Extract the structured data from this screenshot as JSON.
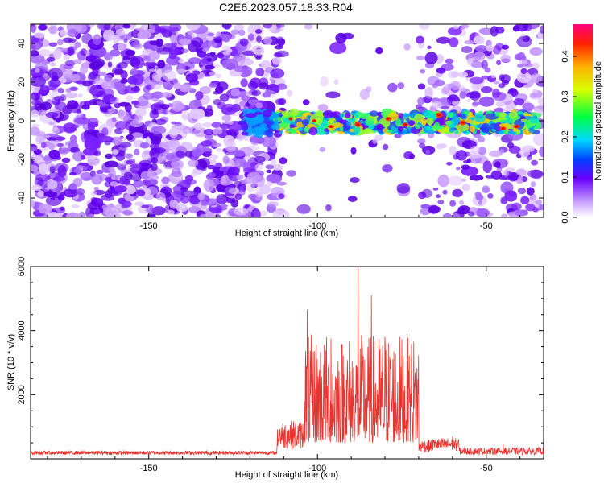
{
  "title": "C2E6.2023.057.18.33.R04",
  "chart_data": [
    {
      "type": "heatmap",
      "xlabel": "Height of straight line (km)",
      "ylabel": "Frequency (Hz)",
      "xlim": [
        -185,
        -33
      ],
      "ylim": [
        -50,
        50
      ],
      "xticks": [
        -150,
        -100,
        -50
      ],
      "yticks": [
        -40,
        -20,
        0,
        20,
        40
      ],
      "colorbar": {
        "label": "Normalized spectral amplitude",
        "range": [
          0.0,
          0.48
        ],
        "ticks": [
          0.0,
          0.1,
          0.2,
          0.3,
          0.4
        ]
      },
      "description_regions": {
        "noise_left": [
          -185,
          -115
        ],
        "strong_band": [
          -115,
          -35
        ],
        "gap_white": [
          -110,
          -70
        ]
      }
    },
    {
      "type": "line",
      "xlabel": "Height of straight line (km)",
      "ylabel": "SNR (10 * v/v)",
      "xlim": [
        -185,
        -33
      ],
      "ylim": [
        0,
        6000
      ],
      "xticks": [
        -150,
        -100,
        -50
      ],
      "yticks": [
        2000,
        4000,
        6000
      ],
      "color": "#e8332e",
      "peaks": [
        {
          "x": -103,
          "y": 4650
        },
        {
          "x": -96,
          "y": 3750
        },
        {
          "x": -88,
          "y": 5950
        },
        {
          "x": -84,
          "y": 5100
        },
        {
          "x": -80,
          "y": 3800
        },
        {
          "x": -73,
          "y": 2750
        },
        {
          "x": -60,
          "y": 700
        },
        {
          "x": -45,
          "y": 450
        }
      ]
    }
  ]
}
